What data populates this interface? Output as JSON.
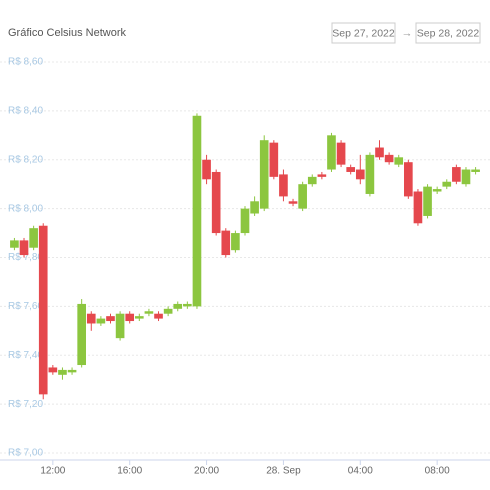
{
  "chart_data": {
    "type": "candlestick",
    "title": "Gráfico Celsius Network",
    "date_from": "Sep 27, 2022",
    "date_to": "Sep 28, 2022",
    "up_color": "#8cc63f",
    "down_color": "#e5484d",
    "grid": true,
    "open": [
      7.84,
      7.87,
      7.84,
      7.93,
      7.35,
      7.32,
      7.33,
      7.36,
      7.57,
      7.53,
      7.56,
      7.47,
      7.57,
      7.55,
      7.57,
      7.57,
      7.57,
      7.59,
      7.6,
      7.6,
      8.2,
      8.15,
      7.91,
      7.83,
      7.9,
      7.98,
      8.0,
      8.27,
      8.14,
      8.03,
      8.0,
      8.1,
      8.14,
      8.16,
      8.27,
      8.17,
      8.16,
      8.06,
      8.25,
      8.22,
      8.18,
      8.19,
      8.07,
      7.97,
      8.07,
      8.09,
      8.17,
      8.1,
      8.15
    ],
    "high": [
      7.88,
      7.88,
      7.93,
      7.94,
      7.36,
      7.35,
      7.35,
      7.63,
      7.58,
      7.56,
      7.57,
      7.58,
      7.58,
      7.57,
      7.59,
      7.58,
      7.6,
      7.62,
      7.62,
      8.39,
      8.22,
      8.16,
      7.92,
      7.91,
      8.01,
      8.05,
      8.3,
      8.28,
      8.16,
      8.04,
      8.11,
      8.14,
      8.15,
      8.31,
      8.28,
      8.18,
      8.22,
      8.23,
      8.28,
      8.23,
      8.22,
      8.2,
      8.08,
      8.1,
      8.09,
      8.12,
      8.18,
      8.17,
      8.17
    ],
    "low": [
      7.83,
      7.8,
      7.83,
      7.22,
      7.32,
      7.3,
      7.32,
      7.35,
      7.5,
      7.52,
      7.53,
      7.46,
      7.53,
      7.54,
      7.56,
      7.54,
      7.56,
      7.58,
      7.59,
      7.59,
      8.1,
      7.89,
      7.8,
      7.82,
      7.89,
      7.97,
      7.99,
      8.12,
      8.03,
      8.01,
      7.99,
      8.09,
      8.12,
      8.15,
      8.17,
      8.14,
      8.1,
      8.05,
      8.2,
      8.18,
      8.17,
      8.04,
      7.93,
      7.96,
      8.06,
      8.08,
      8.1,
      8.09,
      8.14
    ],
    "close": [
      7.87,
      7.81,
      7.92,
      7.24,
      7.33,
      7.34,
      7.34,
      7.61,
      7.53,
      7.55,
      7.54,
      7.57,
      7.54,
      7.56,
      7.58,
      7.55,
      7.59,
      7.61,
      7.61,
      8.38,
      8.12,
      7.9,
      7.81,
      7.9,
      8.0,
      8.03,
      8.28,
      8.13,
      8.05,
      8.02,
      8.1,
      8.13,
      8.13,
      8.3,
      8.18,
      8.15,
      8.12,
      8.22,
      8.21,
      8.19,
      8.21,
      8.05,
      7.94,
      8.09,
      8.08,
      8.11,
      8.11,
      8.16,
      8.16
    ],
    "xlim": [
      -1.5,
      49.5
    ],
    "xticks": [
      {
        "value": 4,
        "label": "12:00"
      },
      {
        "value": 12,
        "label": "16:00"
      },
      {
        "value": 20,
        "label": "20:00"
      },
      {
        "value": 28,
        "label": "28. Sep"
      },
      {
        "value": 36,
        "label": "04:00"
      },
      {
        "value": 44,
        "label": "08:00"
      }
    ],
    "ylim": [
      7.0,
      8.6
    ],
    "yticks": [
      {
        "value": 7.0,
        "label": "R$ 7,00"
      },
      {
        "value": 7.2,
        "label": "R$ 7,20"
      },
      {
        "value": 7.4,
        "label": "R$ 7,40"
      },
      {
        "value": 7.6,
        "label": "R$ 7,60"
      },
      {
        "value": 7.8,
        "label": "R$ 7,80"
      },
      {
        "value": 8.0,
        "label": "R$ 8,00"
      },
      {
        "value": 8.2,
        "label": "R$ 8,20"
      },
      {
        "value": 8.4,
        "label": "R$ 8,40"
      },
      {
        "value": 8.6,
        "label": "R$ 8,60"
      }
    ]
  }
}
